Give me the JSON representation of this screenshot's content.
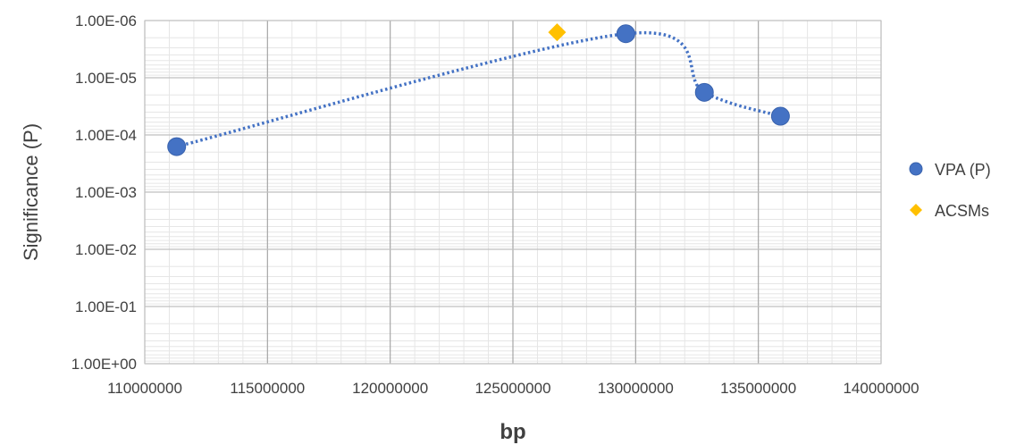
{
  "chart_data": {
    "type": "scatter",
    "title": "",
    "xlabel": "bp",
    "ylabel": "Significance (P)",
    "xlim": [
      110000000,
      140000000
    ],
    "x_ticks": [
      "110000000",
      "115000000",
      "120000000",
      "125000000",
      "130000000",
      "135000000",
      "140000000"
    ],
    "y_scale": "log",
    "y_ticks": [
      "1.00E+00",
      "1.00E-01",
      "1.00E-02",
      "1.00E-03",
      "1.00E-04",
      "1.00E-05",
      "1.00E-06"
    ],
    "y_tick_values": [
      1,
      0.1,
      0.01,
      0.001,
      0.0001,
      1e-05,
      1e-06
    ],
    "grid": true,
    "legend_position": "right",
    "series": [
      {
        "name": "VPA (P)",
        "marker": "circle",
        "color": "#4472C4",
        "trendline": "smoothed dotted",
        "points": [
          {
            "x": 111300000,
            "y": 0.00016
          },
          {
            "x": 129600000,
            "y": 1.7e-06
          },
          {
            "x": 132800000,
            "y": 1.8e-05
          },
          {
            "x": 135900000,
            "y": 4.7e-05
          }
        ]
      },
      {
        "name": "ACSMs",
        "marker": "diamond",
        "color": "#FFC000",
        "points": [
          {
            "x": 126800000,
            "y": 1.6e-06
          }
        ]
      }
    ]
  }
}
